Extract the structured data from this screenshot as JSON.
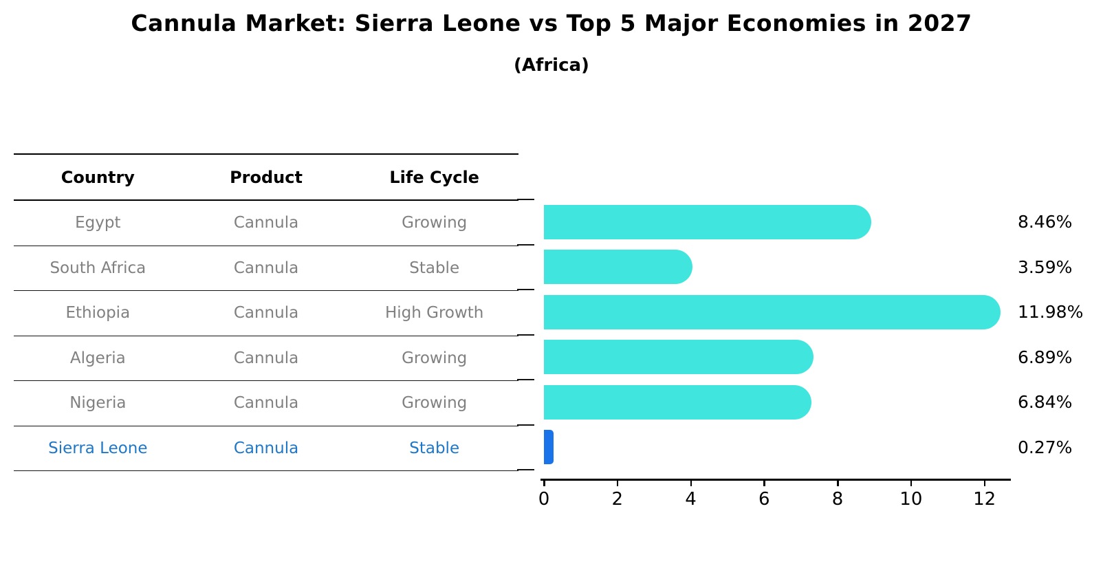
{
  "title": "Cannula Market: Sierra Leone vs Top 5 Major Economies in 2027",
  "subtitle": "(Africa)",
  "table": {
    "headers": [
      "Country",
      "Product",
      "Life Cycle"
    ],
    "rows": [
      {
        "country": "Egypt",
        "product": "Cannula",
        "life_cycle": "Growing",
        "highlight": false
      },
      {
        "country": "South Africa",
        "product": "Cannula",
        "life_cycle": "Stable",
        "highlight": false
      },
      {
        "country": "Ethiopia",
        "product": "Cannula",
        "life_cycle": "High Growth",
        "highlight": false
      },
      {
        "country": "Algeria",
        "product": "Cannula",
        "life_cycle": "Growing",
        "highlight": false
      },
      {
        "country": "Nigeria",
        "product": "Cannula",
        "life_cycle": "Growing",
        "highlight": false
      },
      {
        "country": "Sierra Leone",
        "product": "Cannula",
        "life_cycle": "Stable",
        "highlight": true
      }
    ],
    "highlight_text_color": "#1f77c8",
    "row_text_color": "#808080"
  },
  "chart_data": {
    "type": "bar",
    "orientation": "horizontal",
    "categories": [
      "Egypt",
      "South Africa",
      "Ethiopia",
      "Algeria",
      "Nigeria",
      "Sierra Leone"
    ],
    "values": [
      8.46,
      3.59,
      11.98,
      6.89,
      6.84,
      0.27
    ],
    "value_labels": [
      "8.46%",
      "3.59%",
      "11.98%",
      "6.89%",
      "6.84%",
      "0.27%"
    ],
    "unit": "%",
    "x_ticks": [
      0,
      2,
      4,
      6,
      8,
      10,
      12
    ],
    "xlim": [
      0,
      12.7
    ],
    "grid": false,
    "legend": "none",
    "bar_color": "#40e5de",
    "highlight_color": "#1a73e8",
    "highlight_index": 5
  }
}
